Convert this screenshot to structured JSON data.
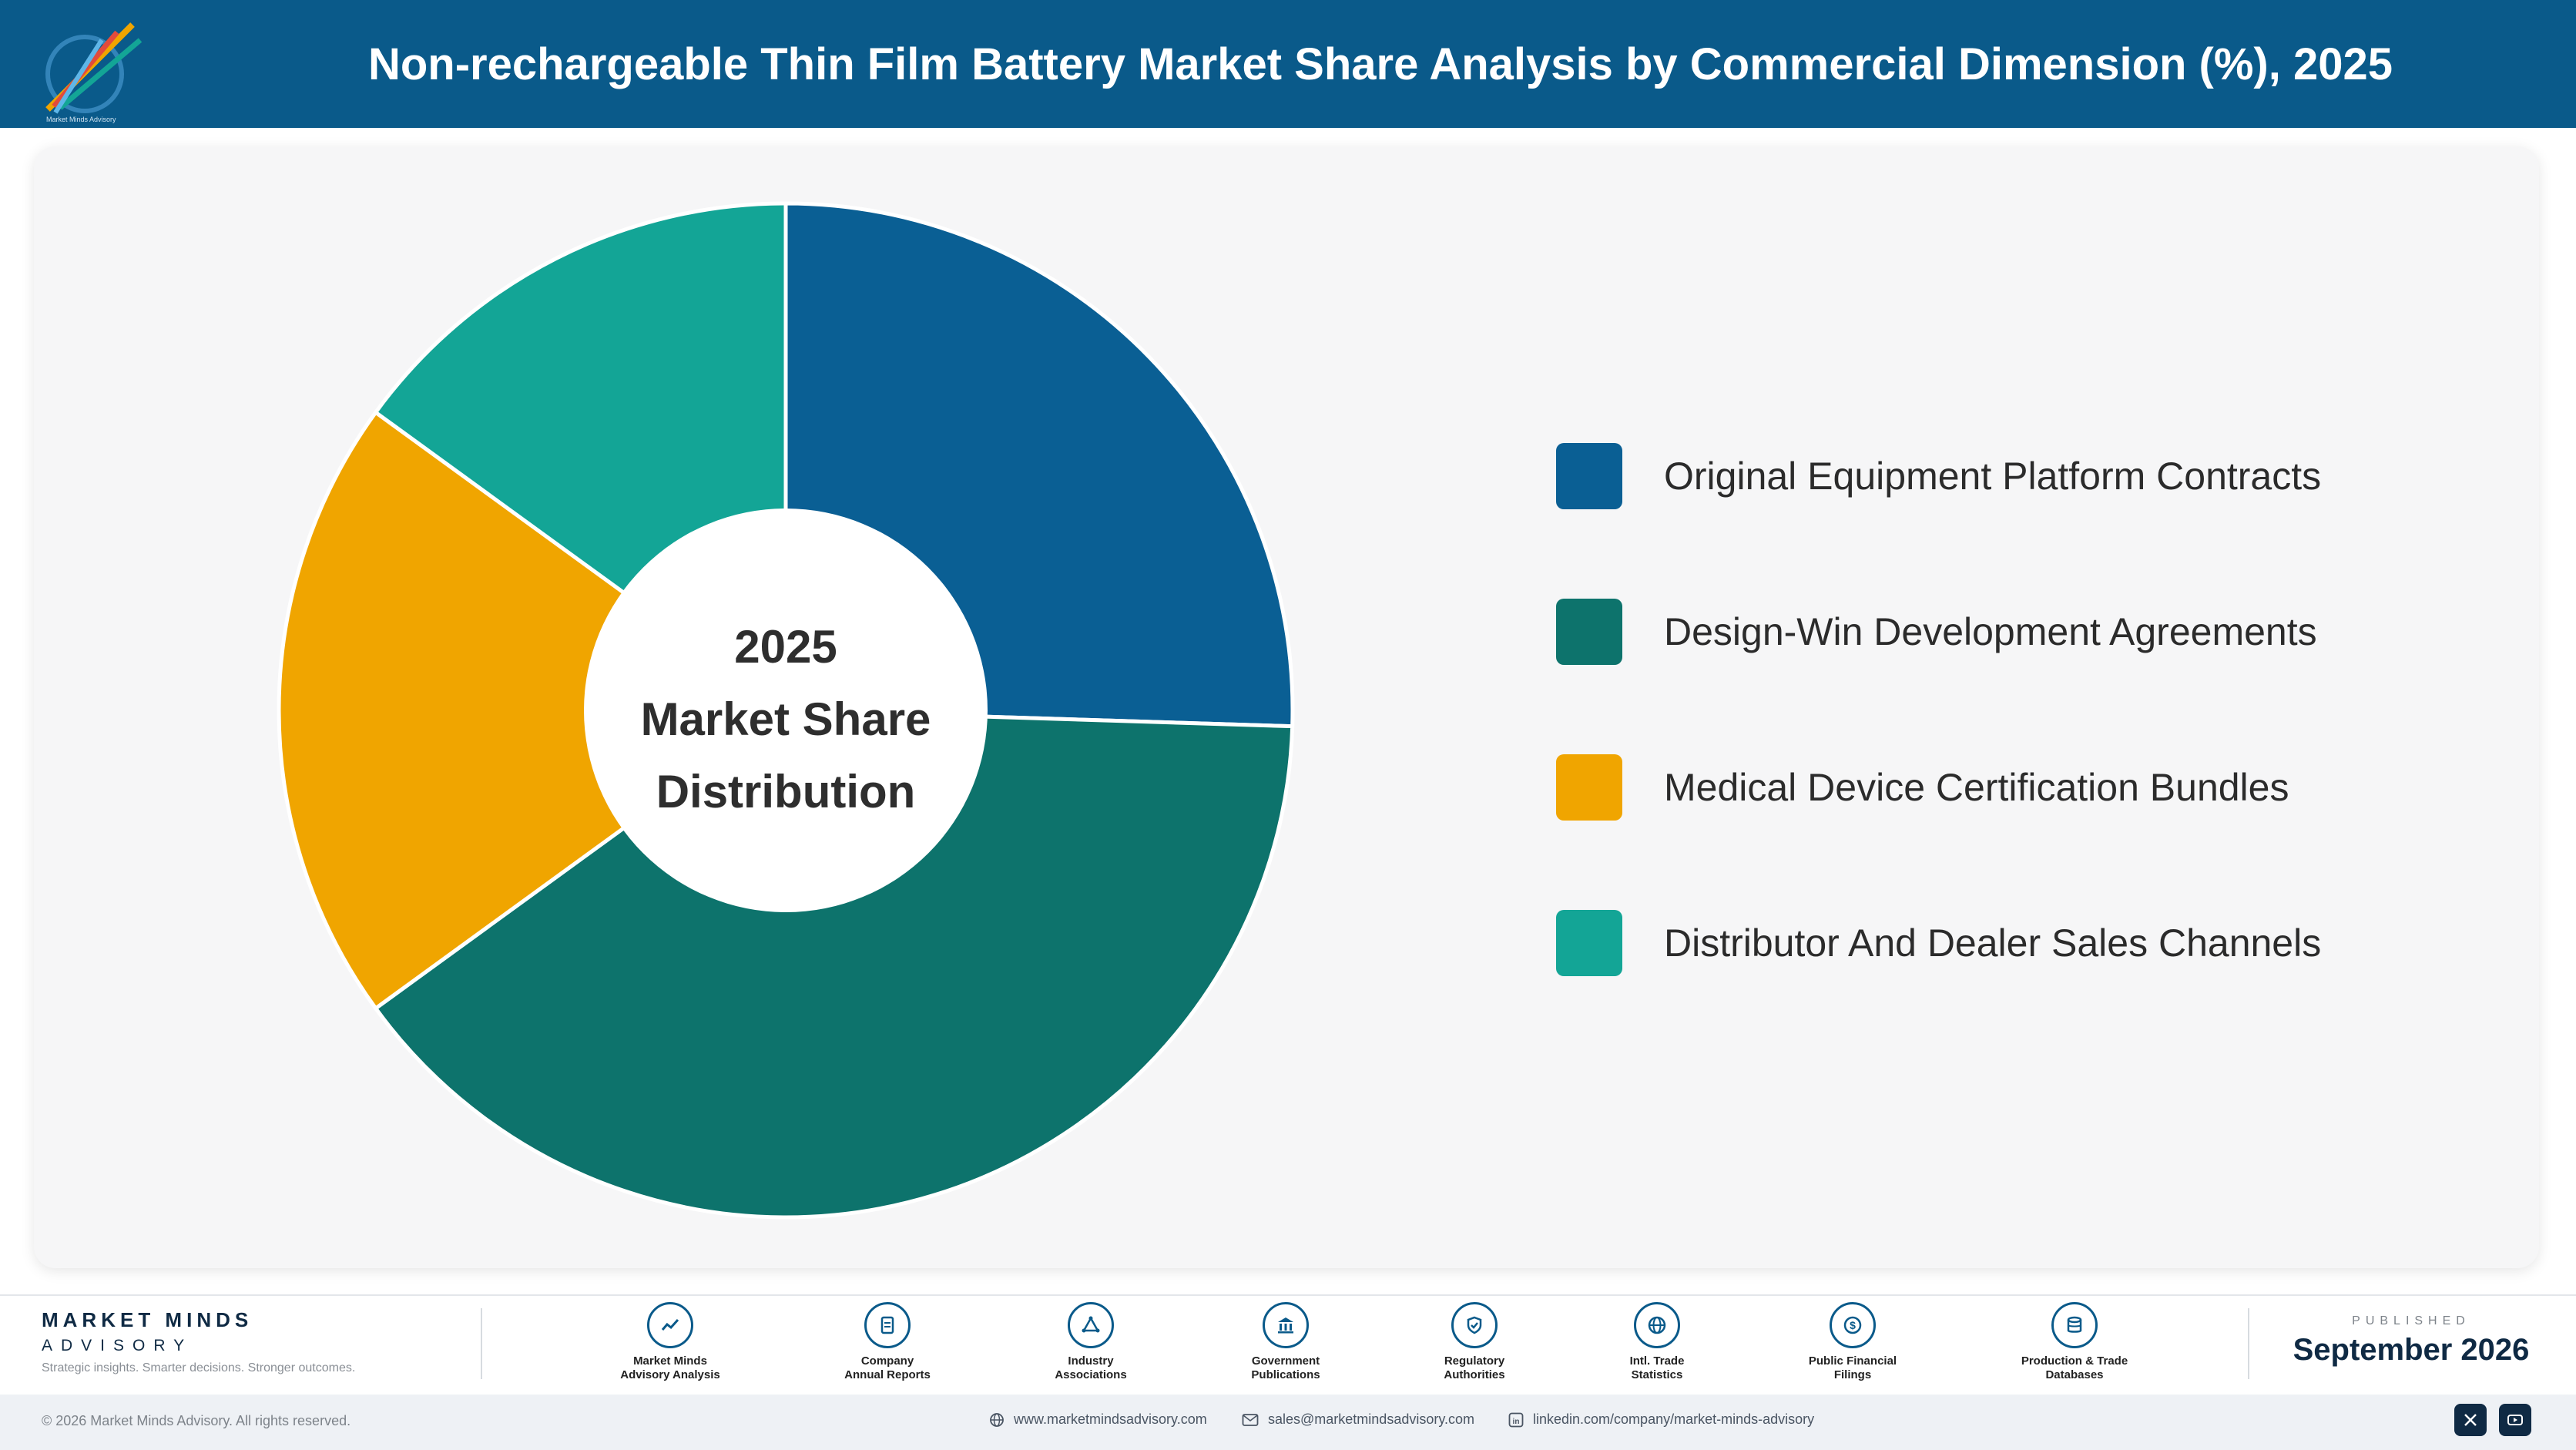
{
  "header": {
    "title": "Non-rechargeable Thin Film Battery Market Share Analysis by Commercial Dimension (%), 2025"
  },
  "logo": {
    "caption": "Market Minds Advisory"
  },
  "chart": {
    "center_label": [
      "2025",
      "Market Share",
      "Distribution"
    ]
  },
  "chart_data": {
    "type": "pie",
    "title": "Non-rechargeable Thin Film Battery Market Share Analysis by Commercial Dimension (%), 2025",
    "labels": [
      "Original Equipment Platform Contracts",
      "Design-Win Development Agreements",
      "Medical Device Certification Bundles",
      "Distributor And Dealer Sales Channels"
    ],
    "values": [
      25.5,
      39.5,
      20,
      15
    ],
    "colors": [
      "#0a5f94",
      "#0d736c",
      "#f0a500",
      "#13a596"
    ],
    "donut": true,
    "legend_position": "right"
  },
  "footer": {
    "brand_name": "MARKET MINDS",
    "brand_sub": "ADVISORY",
    "tagline": "Strategic insights. Smarter decisions. Stronger outcomes.",
    "sources": [
      {
        "line1": "Market Minds",
        "line2": "Advisory Analysis",
        "icon": "trend-chart-icon"
      },
      {
        "line1": "Company",
        "line2": "Annual Reports",
        "icon": "document-icon"
      },
      {
        "line1": "Industry",
        "line2": "Associations",
        "icon": "network-icon"
      },
      {
        "line1": "Government",
        "line2": "Publications",
        "icon": "government-building-icon"
      },
      {
        "line1": "Regulatory",
        "line2": "Authorities",
        "icon": "shield-check-icon"
      },
      {
        "line1": "Intl. Trade",
        "line2": "Statistics",
        "icon": "globe-icon"
      },
      {
        "line1": "Public Financial",
        "line2": "Filings",
        "icon": "dollar-coin-icon"
      },
      {
        "line1": "Production & Trade",
        "line2": "Databases",
        "icon": "database-icon"
      }
    ],
    "published_label": "PUBLISHED",
    "published_date": "September 2026",
    "copyright": "© 2026 Market Minds Advisory. All rights reserved.",
    "website": "www.marketmindsadvisory.com",
    "email": "sales@marketmindsadvisory.com",
    "linkedin": "linkedin.com/company/market-minds-advisory"
  }
}
